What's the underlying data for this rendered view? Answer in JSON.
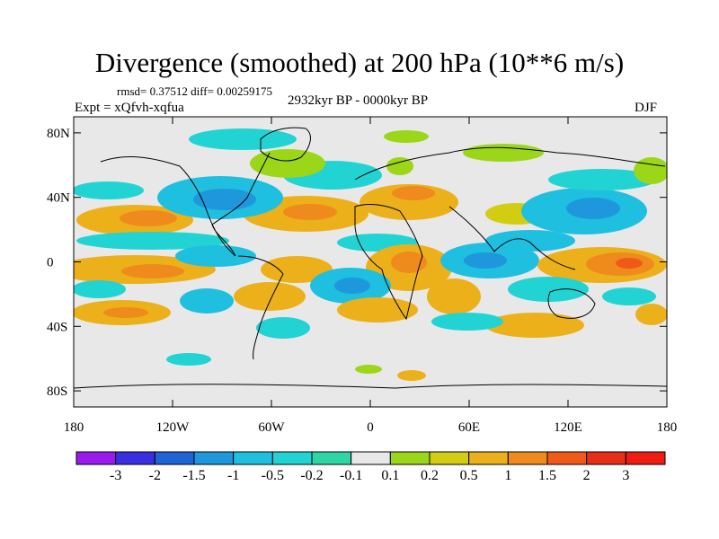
{
  "title": "Divergence (smoothed) at 200 hPa (10**6 m/s)",
  "stats": "rmsd= 0.37512 diff= 0.00259175",
  "experiment": "Expt = xQfvh-xqfua",
  "period": "2932kyr BP - 0000kyr BP",
  "season": "DJF",
  "axes": {
    "lat_labels": [
      "80N",
      "40N",
      "0",
      "40S",
      "80S"
    ],
    "lat_values": [
      80,
      40,
      0,
      -40,
      -80
    ],
    "lon_labels": [
      "180",
      "120W",
      "60W",
      "0",
      "60E",
      "120E",
      "180"
    ],
    "lon_values": [
      -180,
      -120,
      -60,
      0,
      60,
      120,
      180
    ]
  },
  "colorbar": {
    "labels": [
      "-3",
      "-2",
      "-1.5",
      "-1",
      "-0.5",
      "-0.2",
      "-0.1",
      "0.1",
      "0.2",
      "0.5",
      "1",
      "1.5",
      "2",
      "3"
    ],
    "colors": [
      "#9a1af0",
      "#3a2fe0",
      "#1f63d6",
      "#1f97dc",
      "#1fbfe0",
      "#22d3d3",
      "#2ed6a6",
      "#e8e8e8",
      "#9bd619",
      "#d3cd12",
      "#ecb11a",
      "#ef8a1c",
      "#ef5a1a",
      "#e82e16",
      "#ee1d12"
    ]
  },
  "colors": {
    "background": "#ffffff",
    "map_neutral": "#e8e8e8",
    "coast": "#000000"
  }
}
